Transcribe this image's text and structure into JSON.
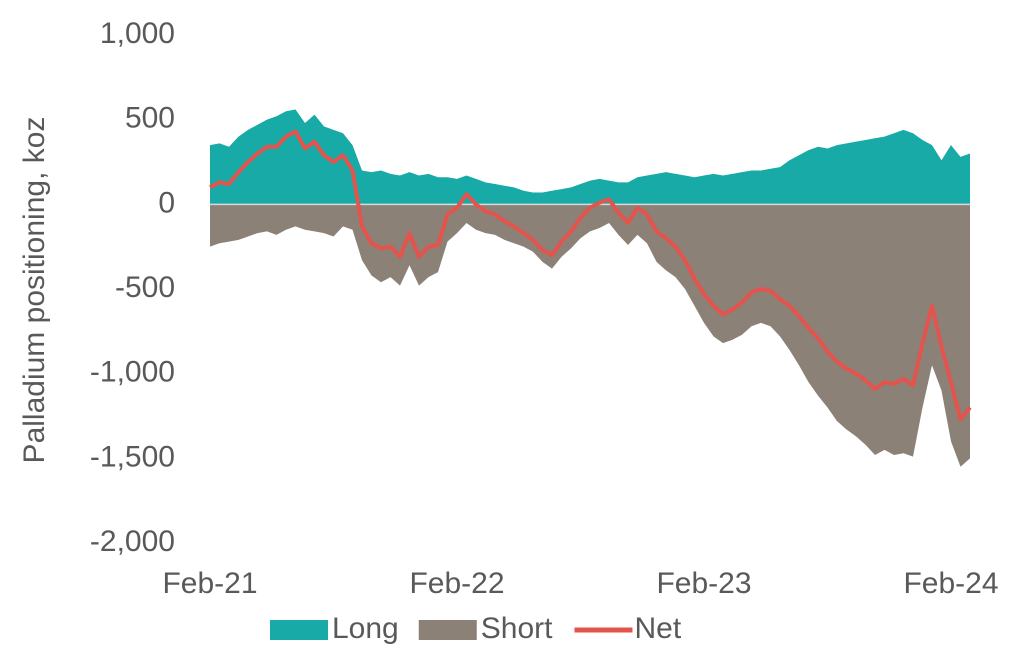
{
  "chart_data": {
    "type": "area",
    "y_label": "Palladium positioning, koz",
    "categories": [
      "Feb-21",
      null,
      null,
      null,
      null,
      null,
      null,
      null,
      null,
      null,
      null,
      null,
      null,
      null,
      null,
      null,
      null,
      null,
      null,
      null,
      null,
      null,
      null,
      null,
      null,
      null,
      "Feb-22",
      null,
      null,
      null,
      null,
      null,
      null,
      null,
      null,
      null,
      null,
      null,
      null,
      null,
      null,
      null,
      null,
      null,
      null,
      null,
      null,
      null,
      null,
      null,
      null,
      null,
      "Feb-23",
      null,
      null,
      null,
      null,
      null,
      null,
      null,
      null,
      null,
      null,
      null,
      null,
      null,
      null,
      null,
      null,
      null,
      null,
      null,
      null,
      null,
      null,
      null,
      null,
      null,
      "Feb-24",
      null,
      null
    ],
    "series": [
      {
        "name": "Long",
        "color": "#17aaa6",
        "kind": "area",
        "values": [
          350,
          360,
          340,
          400,
          440,
          470,
          500,
          520,
          550,
          560,
          480,
          530,
          460,
          440,
          420,
          350,
          200,
          190,
          200,
          180,
          170,
          190,
          170,
          180,
          160,
          160,
          150,
          170,
          150,
          130,
          120,
          110,
          100,
          80,
          70,
          70,
          80,
          90,
          100,
          120,
          140,
          150,
          140,
          130,
          130,
          160,
          170,
          180,
          190,
          180,
          170,
          160,
          170,
          180,
          170,
          180,
          190,
          200,
          200,
          210,
          220,
          260,
          290,
          320,
          340,
          330,
          350,
          360,
          370,
          380,
          390,
          400,
          420,
          440,
          420,
          380,
          350,
          260,
          350,
          280,
          300
        ]
      },
      {
        "name": "Short",
        "color": "#8b8177",
        "kind": "area",
        "values": [
          -250,
          -230,
          -220,
          -210,
          -190,
          -170,
          -160,
          -180,
          -150,
          -130,
          -150,
          -160,
          -170,
          -190,
          -130,
          -150,
          -330,
          -420,
          -460,
          -430,
          -480,
          -360,
          -480,
          -430,
          -400,
          -220,
          -170,
          -110,
          -150,
          -170,
          -180,
          -210,
          -230,
          -250,
          -280,
          -340,
          -380,
          -310,
          -260,
          -200,
          -160,
          -140,
          -110,
          -180,
          -240,
          -180,
          -230,
          -340,
          -390,
          -430,
          -500,
          -600,
          -700,
          -780,
          -820,
          -800,
          -770,
          -720,
          -700,
          -720,
          -780,
          -860,
          -950,
          -1050,
          -1130,
          -1200,
          -1280,
          -1330,
          -1370,
          -1420,
          -1480,
          -1450,
          -1480,
          -1470,
          -1490,
          -1200,
          -950,
          -1100,
          -1400,
          -1550,
          -1500
        ]
      },
      {
        "name": "Net",
        "color": "#e5534d",
        "kind": "line",
        "values": [
          100,
          130,
          120,
          190,
          250,
          300,
          340,
          340,
          400,
          430,
          330,
          370,
          290,
          250,
          290,
          200,
          -130,
          -230,
          -260,
          -250,
          -310,
          -170,
          -310,
          -250,
          -240,
          -60,
          -20,
          60,
          0,
          -40,
          -60,
          -100,
          -130,
          -170,
          -210,
          -270,
          -300,
          -220,
          -160,
          -80,
          -20,
          10,
          30,
          -50,
          -110,
          -20,
          -60,
          -160,
          -200,
          -250,
          -330,
          -440,
          -530,
          -600,
          -650,
          -620,
          -580,
          -520,
          -500,
          -510,
          -560,
          -600,
          -660,
          -730,
          -790,
          -870,
          -930,
          -970,
          -1000,
          -1040,
          -1090,
          -1050,
          -1060,
          -1030,
          -1070,
          -820,
          -600,
          -840,
          -1050,
          -1270,
          -1200
        ]
      }
    ],
    "ylim": [
      -2000,
      1000
    ],
    "yticks": [
      {
        "value": -2000,
        "label": "-2,000"
      },
      {
        "value": -1500,
        "label": "-1,500"
      },
      {
        "value": -1000,
        "label": "-1,000"
      },
      -500,
      0,
      500,
      {
        "value": 1000,
        "label": "1,000"
      }
    ],
    "grid": false,
    "legend": "bottom"
  }
}
